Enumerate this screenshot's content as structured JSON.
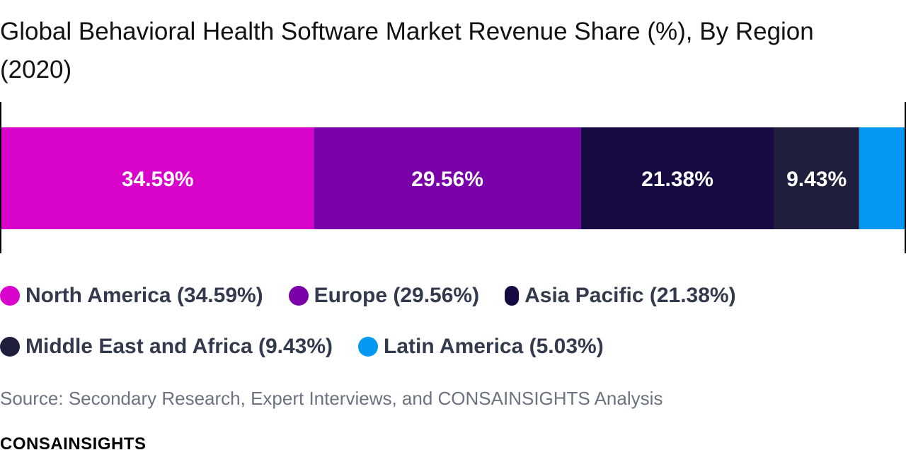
{
  "title": "Global Behavioral Health Software Market Revenue Share (%), By Region (2020)",
  "source": "Source: Secondary Research, Expert Interviews, and CONSAINSIGHTS Analysis",
  "brand": "CONSAINSIGHTS",
  "chart_data": {
    "type": "bar",
    "orientation": "horizontal-stacked",
    "title": "Global Behavioral Health Software Market Revenue Share (%), By Region (2020)",
    "unit": "%",
    "xlim": [
      0,
      100
    ],
    "legend_position": "bottom",
    "grid": false,
    "series": [
      {
        "name": "North America",
        "value": 34.59,
        "label": "34.59%",
        "legend": "North America (34.59%)",
        "color": "#d904cc"
      },
      {
        "name": "Europe",
        "value": 29.56,
        "label": "29.56%",
        "legend": "Europe (29.56%)",
        "color": "#7a01a8"
      },
      {
        "name": "Asia Pacific",
        "value": 21.38,
        "label": "21.38%",
        "legend": "Asia Pacific (21.38%)",
        "color": "#170a42"
      },
      {
        "name": "Middle East and Africa",
        "value": 9.43,
        "label": "9.43%",
        "legend": "Middle East and Africa (9.43%)",
        "color": "#1f1f3d"
      },
      {
        "name": "Latin America",
        "value": 5.03,
        "label": "",
        "legend": "Latin America (5.03%)",
        "color": "#0597f2"
      }
    ]
  }
}
